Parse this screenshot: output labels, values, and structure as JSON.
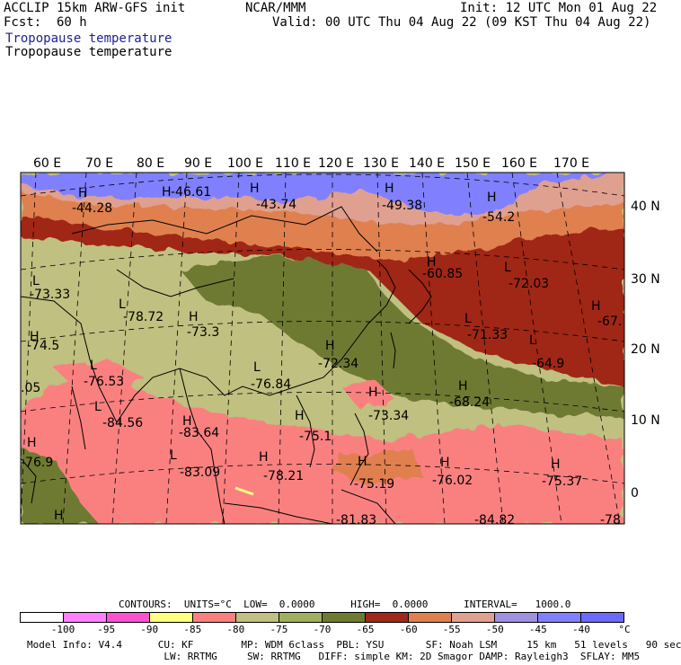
{
  "header": {
    "model": "ACCLIP 15km ARW-GFS init",
    "org": "NCAR/MMM",
    "init": "Init: 12 UTC Mon 01 Aug 22",
    "fcst": "Fcst:  60 h",
    "valid": "Valid: 00 UTC Thu 04 Aug 22 (09 KST Thu 04 Aug 22)",
    "field_title_1": "Tropopause temperature",
    "field_title_2": "Tropopause temperature"
  },
  "map": {
    "lon_labels": [
      "60 E",
      "70 E",
      "80 E",
      "90 E",
      "100 E",
      "110 E",
      "120 E",
      "130 E",
      "140 E",
      "150 E",
      "160 E",
      "170 E"
    ],
    "lat_labels": [
      "40 N",
      "30 N",
      "20 N",
      "10 N",
      "0"
    ],
    "markers": [
      {
        "type": "H",
        "value": "-44.28"
      },
      {
        "type": "H",
        "value": "-46.61"
      },
      {
        "type": "H",
        "value": "-43.74"
      },
      {
        "type": "H",
        "value": "-49.38"
      },
      {
        "type": "H",
        "value": "-54.2"
      },
      {
        "type": "L",
        "value": "-73.33"
      },
      {
        "type": "L",
        "value": "-78.72"
      },
      {
        "type": "H",
        "value": "-73.3"
      },
      {
        "type": "H",
        "value": "-60.85"
      },
      {
        "type": "L",
        "value": "-72.03"
      },
      {
        "type": "H",
        "value": "-67."
      },
      {
        "type": "H",
        "value": "-74.5"
      },
      {
        "type": "L",
        "value": "-71.33"
      },
      {
        "type": "H",
        "value": "-72.34"
      },
      {
        "type": "L",
        "value": "-64.9"
      },
      {
        "type": "L",
        "value": "-76.53"
      },
      {
        "type": "L",
        "value": "-76.84"
      },
      {
        "type": "H",
        "value": "-68.24"
      },
      {
        "type": "",
        "value": ".05"
      },
      {
        "type": "H",
        "value": "-73.34"
      },
      {
        "type": "L",
        "value": "-84.56"
      },
      {
        "type": "H",
        "value": "-83.64"
      },
      {
        "type": "H",
        "value": "-75.1"
      },
      {
        "type": "H",
        "value": "-76.9"
      },
      {
        "type": "L",
        "value": "-83.09"
      },
      {
        "type": "H",
        "value": "-78.21"
      },
      {
        "type": "H",
        "value": "-75.19"
      },
      {
        "type": "H",
        "value": "-76.02"
      },
      {
        "type": "H",
        "value": "-75.37"
      },
      {
        "type": "H",
        "value": ""
      },
      {
        "type": "",
        "value": "-81.83"
      },
      {
        "type": "",
        "value": "-84.82"
      },
      {
        "type": "",
        "value": "-78"
      }
    ]
  },
  "legend": {
    "contours_line": "CONTOURS:  UNITS=°C  LOW=  0.0000      HIGH=  0.0000      INTERVAL=   1000.0",
    "colors": [
      "#ffffff",
      "#ff80ff",
      "#ff50d0",
      "#ffff80",
      "#fa8080",
      "#c0c080",
      "#a0b060",
      "#6e7a30",
      "#a02818",
      "#e08050",
      "#e0a090",
      "#a090e0",
      "#8080ff",
      "#6a6aff"
    ],
    "ticks": [
      "-100",
      "-95",
      "-90",
      "-85",
      "-80",
      "-75",
      "-70",
      "-65",
      "-60",
      "-55",
      "-50",
      "-45",
      "-40"
    ],
    "unit": "°C"
  },
  "footer": {
    "line1": "Model Info: V4.4      CU: KF        MP: WDM 6class  PBL: YSU       SF: Noah LSM     15 km   51 levels   90 sec",
    "line2": "                       LW: RRTMG     SW: RRTMG   DIFF: simple KM: 2D Smagor DAMP: Rayleigh3  SFLAY: MM5"
  }
}
